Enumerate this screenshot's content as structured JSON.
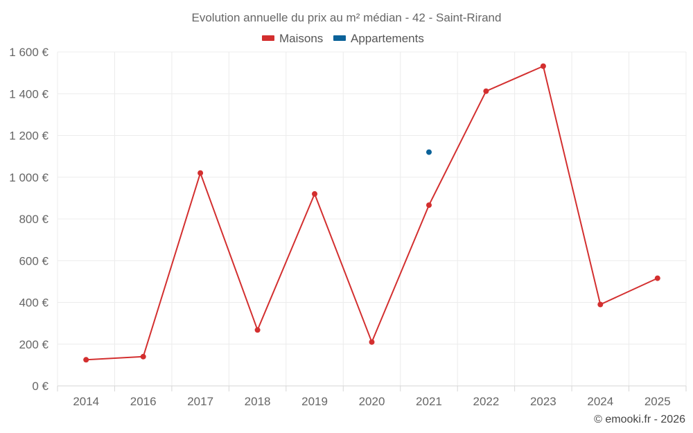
{
  "chart_data": {
    "type": "line",
    "title": "Evolution annuelle du prix au m² médian - 42 - Saint-Rirand",
    "categories": [
      "2014",
      "2016",
      "2017",
      "2018",
      "2019",
      "2020",
      "2021",
      "2022",
      "2023",
      "2024",
      "2025"
    ],
    "series": [
      {
        "name": "Maisons",
        "color": "#d32f2f",
        "values": [
          125,
          140,
          1020,
          268,
          920,
          210,
          866,
          1412,
          1532,
          390,
          516
        ]
      },
      {
        "name": "Appartements",
        "color": "#0b6299",
        "values": [
          null,
          null,
          null,
          null,
          null,
          null,
          1120,
          null,
          null,
          null,
          null
        ]
      }
    ],
    "y_ticks": [
      "0 €",
      "200 €",
      "400 €",
      "600 €",
      "800 €",
      "1 000 €",
      "1 200 €",
      "1 400 €",
      "1 600 €"
    ],
    "ylim": [
      0,
      1600
    ],
    "xlabel": "",
    "ylabel": "",
    "grid": true,
    "legend": "top"
  },
  "credit": "© emooki.fr - 2026"
}
